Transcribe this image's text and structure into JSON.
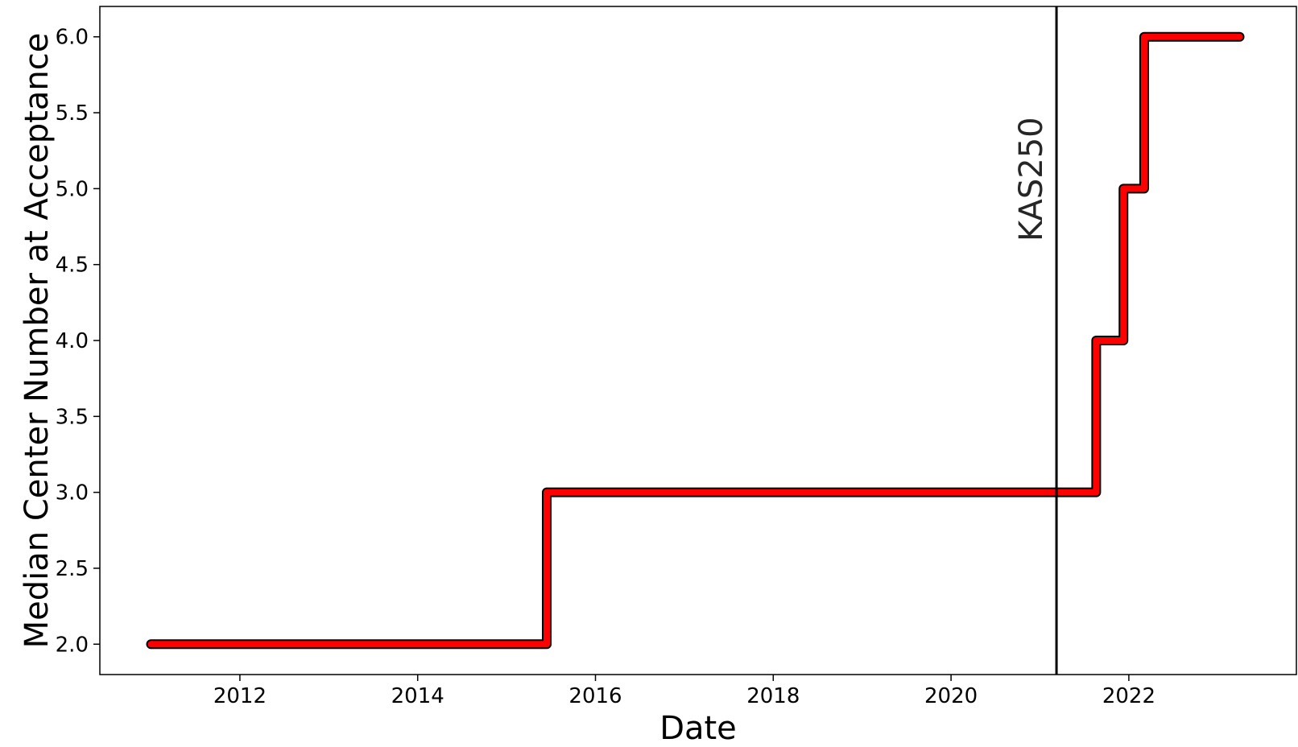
{
  "chart_data": {
    "type": "line",
    "title": "",
    "xlabel": "Date",
    "ylabel": "Median Center Number at Acceptance",
    "xlim": [
      "2010-06-05",
      "2023-11-20"
    ],
    "ylim": [
      1.8,
      6.2
    ],
    "x_ticks": [
      "2012",
      "2014",
      "2016",
      "2018",
      "2020",
      "2022"
    ],
    "y_ticks": [
      "2.0",
      "2.5",
      "3.0",
      "3.5",
      "4.0",
      "4.5",
      "5.0",
      "5.5",
      "6.0"
    ],
    "grid": false,
    "legend": "none",
    "series": [
      {
        "step": "post",
        "color": "#ff0000",
        "edge_color": "#000000",
        "points": [
          {
            "x": "2011-01-01",
            "y": 2
          },
          {
            "x": "2015-06-15",
            "y": 3
          },
          {
            "x": "2021-08-20",
            "y": 4
          },
          {
            "x": "2021-12-10",
            "y": 5
          },
          {
            "x": "2022-03-05",
            "y": 6
          },
          {
            "x": "2023-04-01",
            "y": 6
          }
        ]
      }
    ],
    "annotations": [
      {
        "type": "vline",
        "x": "2021-03-10",
        "label": "KAS250",
        "color": "#000000"
      }
    ]
  }
}
